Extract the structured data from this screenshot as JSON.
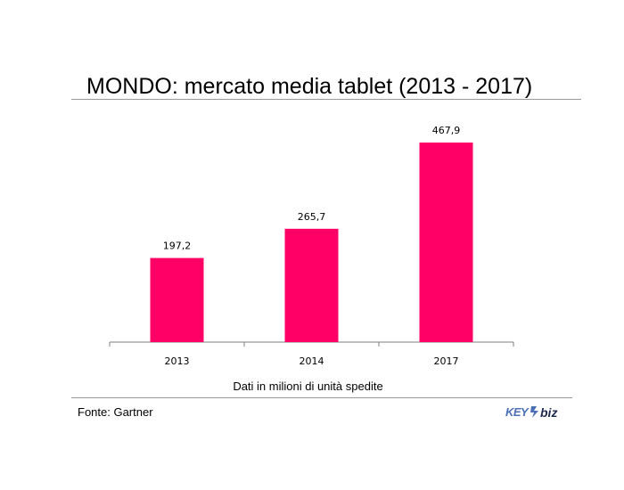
{
  "chart_data": {
    "type": "bar",
    "title": "MONDO: mercato media tablet (2013 - 2017)",
    "categories": [
      "2013",
      "2014",
      "2017"
    ],
    "values": [
      197.2,
      265.7,
      467.9
    ],
    "value_labels": [
      "197,2",
      "265,7",
      "467,9"
    ],
    "xlabel": "Dati in milioni di unità spedite",
    "ylabel": "",
    "ylim": [
      0,
      500
    ],
    "grid": false,
    "legend": "none",
    "bar_color": "#ff0066"
  },
  "footer": {
    "source": "Fonte: Gartner",
    "logo_text": "KEY4biz"
  },
  "colors": {
    "bar": "#ff0066",
    "axis": "#7f7f7f",
    "rule": "#9a9a9a",
    "logo_blue": "#4a6fb5",
    "logo_dark": "#1d2b4f"
  }
}
